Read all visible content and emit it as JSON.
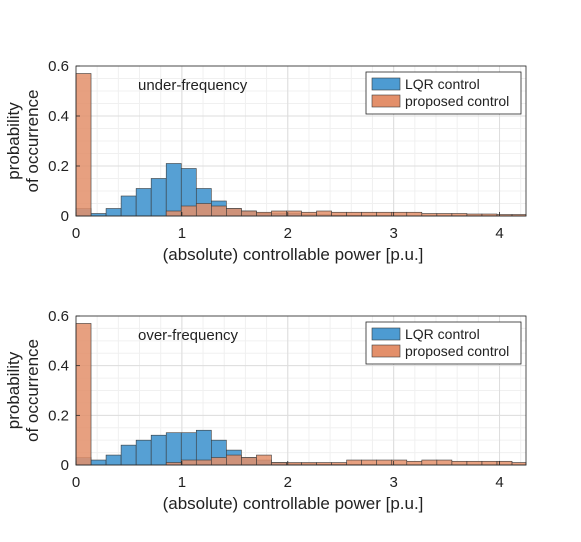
{
  "chart_data": [
    {
      "type": "bar",
      "subtype": "overlaid-histogram",
      "annotation": "under-frequency",
      "xlabel": "(absolute) controllable power [p.u.]",
      "ylabel_lines": [
        "probability",
        "of occurrence"
      ],
      "xlim": [
        0,
        4.25
      ],
      "ylim": [
        0,
        0.6
      ],
      "xticks": [
        0,
        1,
        2,
        3,
        4
      ],
      "xtick_labels": [
        "0",
        "1",
        "2",
        "3",
        "4"
      ],
      "yticks": [
        0,
        0.2,
        0.4,
        0.6
      ],
      "ytick_labels": [
        "0",
        "0.2",
        "0.4",
        "0.6"
      ],
      "grid": true,
      "legend_position": "top-right",
      "bin_width": 0.142,
      "series": [
        {
          "name": "LQR control",
          "color": "#0072BD",
          "values": [
            0.03,
            0.01,
            0.03,
            0.08,
            0.11,
            0.15,
            0.21,
            0.19,
            0.11,
            0.06,
            0.03,
            0.02,
            0.01,
            0.01,
            0.01,
            0.005,
            0.005,
            0.003,
            0.003,
            0.002,
            0.002,
            0.001,
            0.001,
            0.001,
            0.001,
            0.001,
            0.001,
            0.001,
            0.001,
            0.001
          ]
        },
        {
          "name": "proposed control",
          "color": "#D95319",
          "values": [
            0.57,
            0.0,
            0.0,
            0.0,
            0.0,
            0.0,
            0.02,
            0.04,
            0.05,
            0.04,
            0.03,
            0.02,
            0.015,
            0.02,
            0.02,
            0.015,
            0.02,
            0.015,
            0.015,
            0.015,
            0.015,
            0.015,
            0.015,
            0.01,
            0.01,
            0.01,
            0.008,
            0.008,
            0.006,
            0.006
          ]
        }
      ]
    },
    {
      "type": "bar",
      "subtype": "overlaid-histogram",
      "annotation": "over-frequency",
      "xlabel": "(absolute) controllable power [p.u.]",
      "ylabel_lines": [
        "probability",
        "of occurrence"
      ],
      "xlim": [
        0,
        4.25
      ],
      "ylim": [
        0,
        0.6
      ],
      "xticks": [
        0,
        1,
        2,
        3,
        4
      ],
      "xtick_labels": [
        "0",
        "1",
        "2",
        "3",
        "4"
      ],
      "yticks": [
        0,
        0.2,
        0.4,
        0.6
      ],
      "ytick_labels": [
        "0",
        "0.2",
        "0.4",
        "0.6"
      ],
      "grid": true,
      "legend_position": "top-right",
      "bin_width": 0.142,
      "series": [
        {
          "name": "LQR control",
          "color": "#0072BD",
          "values": [
            0.03,
            0.02,
            0.04,
            0.08,
            0.1,
            0.12,
            0.13,
            0.13,
            0.14,
            0.1,
            0.06,
            0.03,
            0.02,
            0.01,
            0.005,
            0.005,
            0.003,
            0.003,
            0.002,
            0.002,
            0.001,
            0.001,
            0.001,
            0.001,
            0.001,
            0.001,
            0.001,
            0.001,
            0.001,
            0.001
          ]
        },
        {
          "name": "proposed control",
          "color": "#D95319",
          "values": [
            0.57,
            0.0,
            0.0,
            0.0,
            0.0,
            0.0,
            0.01,
            0.02,
            0.02,
            0.03,
            0.04,
            0.03,
            0.04,
            0.01,
            0.01,
            0.01,
            0.01,
            0.01,
            0.02,
            0.02,
            0.02,
            0.02,
            0.015,
            0.02,
            0.02,
            0.015,
            0.015,
            0.015,
            0.015,
            0.01
          ]
        }
      ]
    }
  ]
}
